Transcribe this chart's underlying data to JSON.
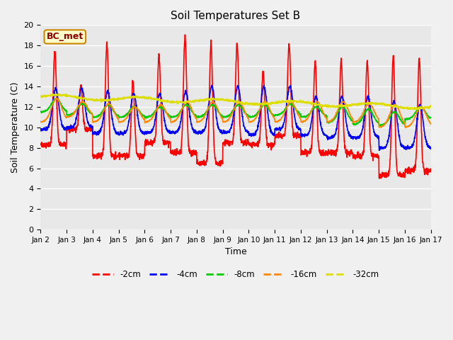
{
  "title": "Soil Temperatures Set B",
  "xlabel": "Time",
  "ylabel": "Soil Temperature (C)",
  "annotation": "BC_met",
  "ylim": [
    0,
    20
  ],
  "yticks": [
    0,
    2,
    4,
    6,
    8,
    10,
    12,
    14,
    16,
    18,
    20
  ],
  "xtick_labels": [
    "Jan 2",
    "Jan 3",
    "Jan 4",
    "Jan 5",
    "Jan 6",
    "Jan 7",
    "Jan 8",
    "Jan 9",
    "Jan 10",
    "Jan 11",
    "Jan 12",
    "Jan 13",
    "Jan 14",
    "Jan 15",
    "Jan 16",
    "Jan 17"
  ],
  "series_colors": {
    "-2cm": "#ff0000",
    "-4cm": "#0000ff",
    "-8cm": "#00cc00",
    "-16cm": "#ff8800",
    "-32cm": "#dddd00"
  },
  "bg_color": "#e8e8e8",
  "fig_bg": "#f0f0f0",
  "grid_color": "#ffffff",
  "n_days": 15,
  "pts_per_day": 144
}
